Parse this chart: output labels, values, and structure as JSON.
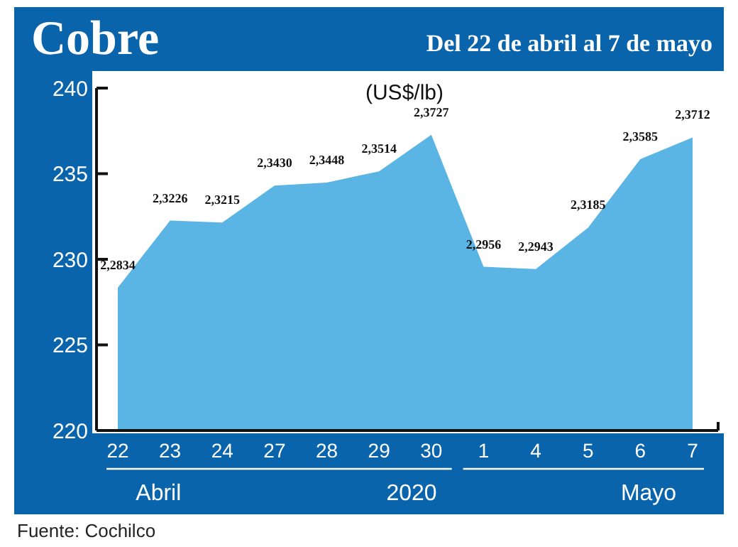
{
  "chart_data": {
    "type": "area",
    "title": "Cobre",
    "subtitle": "Del 22 de abril al 7 de mayo",
    "ylabel": "(US$/lb)",
    "categories": [
      "22",
      "23",
      "24",
      "27",
      "28",
      "29",
      "30",
      "1",
      "4",
      "5",
      "6",
      "7"
    ],
    "series": [
      {
        "color": "#5ab4e4",
        "values": [
          228.34,
          232.26,
          232.15,
          234.3,
          234.48,
          235.14,
          237.27,
          229.56,
          229.43,
          231.85,
          235.85,
          237.12
        ],
        "value_labels": [
          "2,2834",
          "2,3226",
          "2,3215",
          "2,3430",
          "2,3448",
          "2,3514",
          "2,3727",
          "2,2956",
          "2,2943",
          "2,3185",
          "2,3585",
          "2,3712"
        ]
      }
    ],
    "ylim": [
      220,
      240
    ],
    "yticks": [
      220,
      225,
      230,
      235,
      240
    ],
    "grid": false,
    "annotations": [
      "Abril",
      "2020",
      "Mayo",
      "Fuente: Cochilco"
    ]
  }
}
